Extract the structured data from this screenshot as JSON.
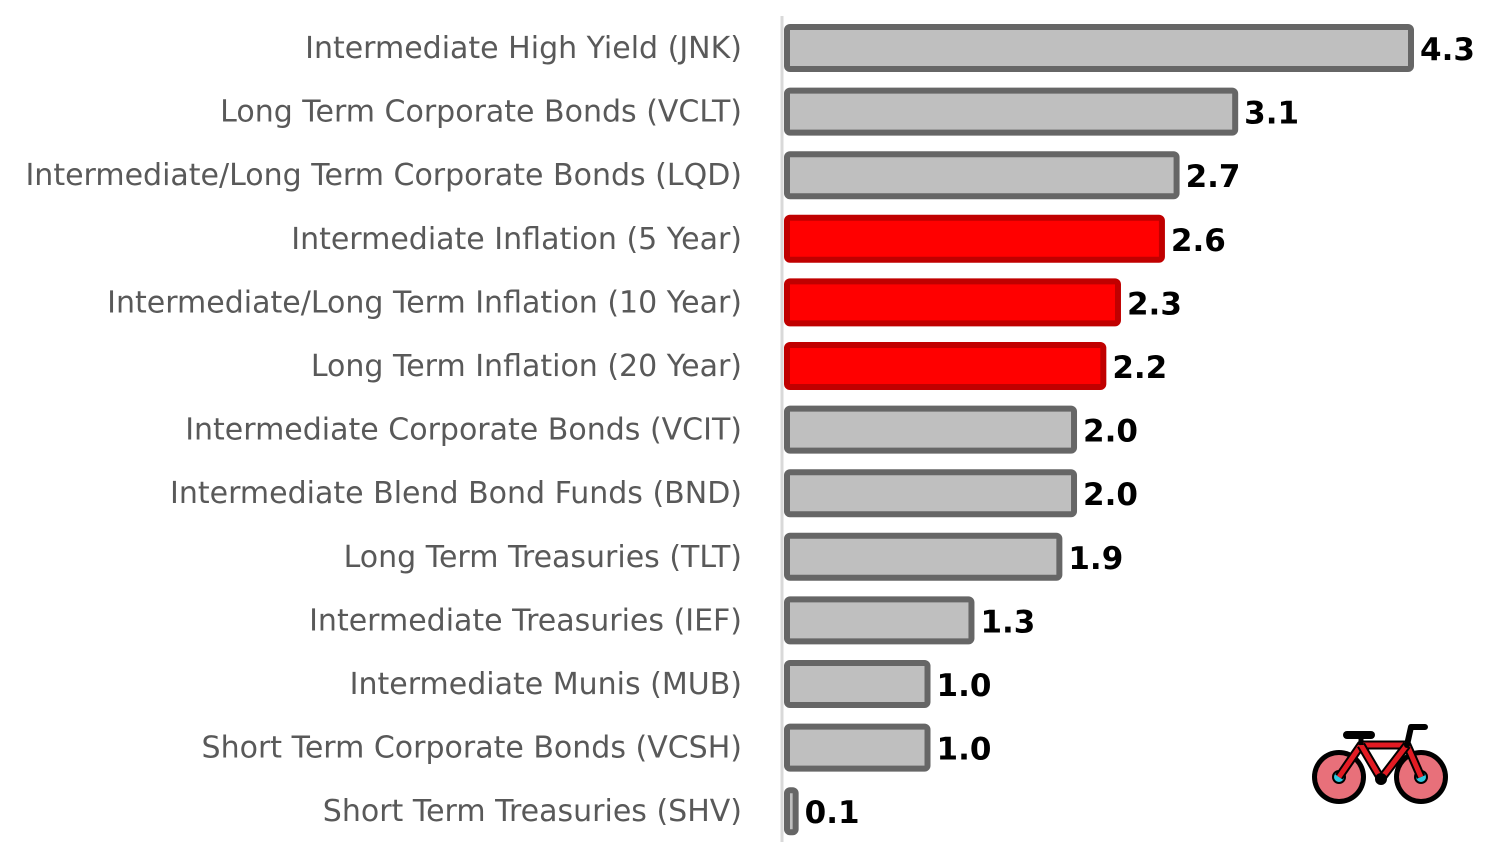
{
  "chart_data": {
    "type": "bar",
    "orientation": "horizontal",
    "categories": [
      "Intermediate High Yield (JNK)",
      "Long Term Corporate Bonds (VCLT)",
      "Intermediate/Long Term Corporate Bonds (LQD)",
      "Intermediate Inflation (5 Year)",
      "Intermediate/Long Term Inflation (10 Year)",
      "Long Term Inflation (20 Year)",
      "Intermediate Corporate Bonds (VCIT)",
      "Intermediate Blend Bond Funds (BND)",
      "Long Term Treasuries (TLT)",
      "Intermediate Treasuries (IEF)",
      "Intermediate Munis (MUB)",
      "Short Term Corporate Bonds (VCSH)",
      "Short Term Treasuries (SHV)"
    ],
    "values": [
      4.3,
      3.1,
      2.7,
      2.6,
      2.3,
      2.2,
      2.0,
      2.0,
      1.9,
      1.3,
      1.0,
      1.0,
      0.1
    ],
    "value_labels": [
      "4.3",
      "3.1",
      "2.7",
      "2.6",
      "2.3",
      "2.2",
      "2.0",
      "2.0",
      "1.9",
      "1.3",
      "1.0",
      "1.0",
      "0.1"
    ],
    "highlighted": [
      false,
      false,
      false,
      true,
      true,
      true,
      false,
      false,
      false,
      false,
      false,
      false,
      false
    ],
    "xlim": [
      0,
      4.3
    ],
    "title": "",
    "xlabel": "",
    "ylabel": "",
    "grid": false,
    "legend": "none"
  },
  "colors": {
    "bar_fill": "#bfbfbf",
    "bar_border": "#666666",
    "highlight_fill": "#ff0000",
    "highlight_border": "#c00000",
    "axis_line": "#d9d9d9",
    "category_text": "#595959",
    "value_text": "#000000"
  },
  "logo": {
    "icon": "bicycle-icon",
    "frame_color": "#e21b23",
    "wheel_color": "#e8707a",
    "hub_color": "#2ec9e0",
    "outline_color": "#000000"
  }
}
